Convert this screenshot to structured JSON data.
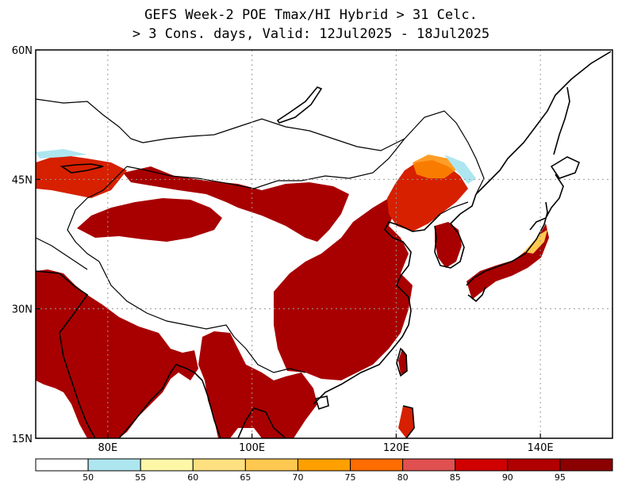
{
  "title": {
    "line1": "GEFS Week-2 POE Tmax/HI Hybrid > 31 Celc.",
    "line2": "> 3 Cons. days, Valid: 12Jul2025 - 18Jul2025"
  },
  "map": {
    "lon_range": [
      70,
      150
    ],
    "lat_range": [
      15,
      60
    ],
    "lon_ticks": [
      {
        "value": 80,
        "label": "80E"
      },
      {
        "value": 100,
        "label": "100E"
      },
      {
        "value": 120,
        "label": "120E"
      },
      {
        "value": 140,
        "label": "140E"
      }
    ],
    "lat_ticks": [
      {
        "value": 15,
        "label": "15N"
      },
      {
        "value": 30,
        "label": "30N"
      },
      {
        "value": 45,
        "label": "45N"
      },
      {
        "value": 60,
        "label": "60N"
      }
    ],
    "grid": true,
    "gridlines_lon": [
      80,
      100,
      120,
      140
    ],
    "gridlines_lat": [
      30,
      45
    ]
  },
  "colorbar": {
    "labels": [
      "50",
      "55",
      "60",
      "65",
      "70",
      "75",
      "80",
      "85",
      "90",
      "95"
    ],
    "colors": [
      "#ffffff",
      "#aee6f0",
      "#fff7a8",
      "#ffe080",
      "#ffc850",
      "#ff9f00",
      "#ff6c00",
      "#e05050",
      "#d00000",
      "#b00000",
      "#8b0000"
    ]
  },
  "shading": {
    "high_color": "#a80000",
    "mid_color": "#d62000",
    "low_color": "#ff8c00",
    "edge_color": "#ffc850",
    "light_color": "#aee6f0"
  }
}
